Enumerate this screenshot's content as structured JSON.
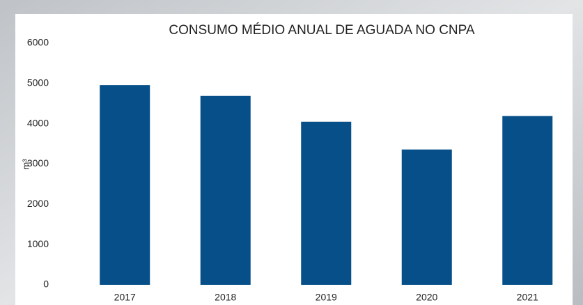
{
  "chart_data": {
    "type": "bar",
    "title": "CONSUMO MÉDIO ANUAL DE AGUADA NO CNPA",
    "y_label": "m³",
    "categories": [
      "2017",
      "2018",
      "2019",
      "2020",
      "2021"
    ],
    "values": [
      4960,
      4690,
      4050,
      3360,
      4190
    ],
    "color": "#064f88",
    "ylim": [
      0,
      6000
    ],
    "yticks": [
      0,
      1000,
      2000,
      3000,
      4000,
      5000,
      6000
    ],
    "grid": false
  }
}
